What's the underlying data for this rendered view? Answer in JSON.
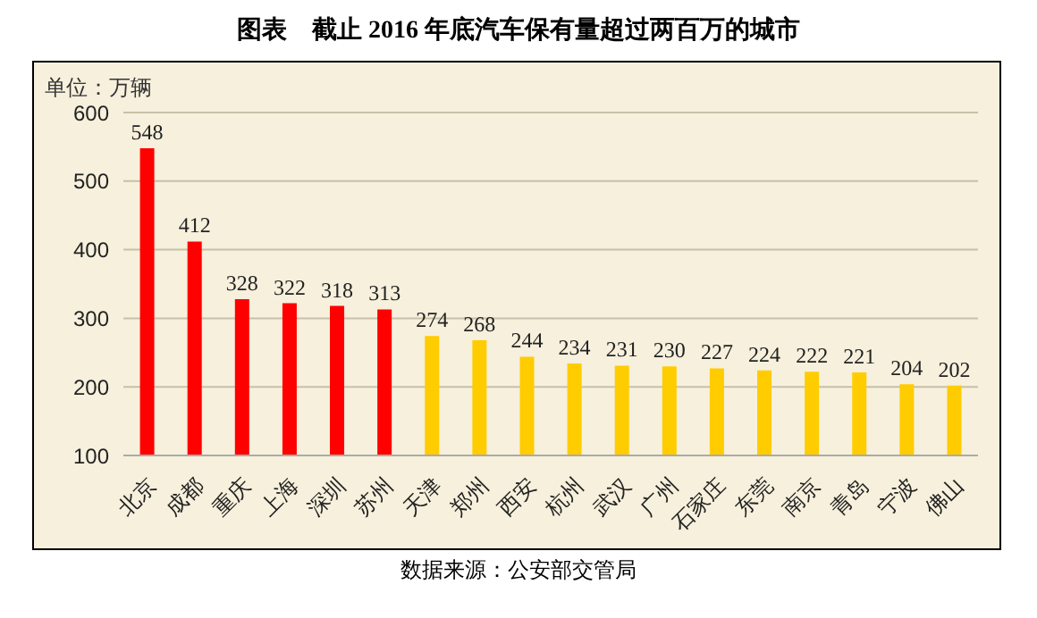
{
  "chart_data": {
    "type": "bar",
    "title": "图表　截止 2016 年底汽车保有量超过两百万的城市",
    "ylabel": "单位：万辆",
    "categories": [
      "北京",
      "成都",
      "重庆",
      "上海",
      "深圳",
      "苏州",
      "天津",
      "郑州",
      "西安",
      "杭州",
      "武汉",
      "广州",
      "石家庄",
      "东莞",
      "南京",
      "青岛",
      "宁波",
      "佛山"
    ],
    "values": [
      548,
      412,
      328,
      322,
      318,
      313,
      274,
      268,
      244,
      234,
      231,
      230,
      227,
      224,
      222,
      221,
      204,
      202
    ],
    "colors": [
      "#ff0000",
      "#ff0000",
      "#ff0000",
      "#ff0000",
      "#ff0000",
      "#ff0000",
      "#ffcc00",
      "#ffcc00",
      "#ffcc00",
      "#ffcc00",
      "#ffcc00",
      "#ffcc00",
      "#ffcc00",
      "#ffcc00",
      "#ffcc00",
      "#ffcc00",
      "#ffcc00",
      "#ffcc00"
    ],
    "ylim": [
      100,
      600
    ],
    "yticks": [
      100,
      200,
      300,
      400,
      500,
      600
    ],
    "grid": "y",
    "data_labels": true,
    "annotations": [
      "数据来源：公安部交管局"
    ]
  }
}
